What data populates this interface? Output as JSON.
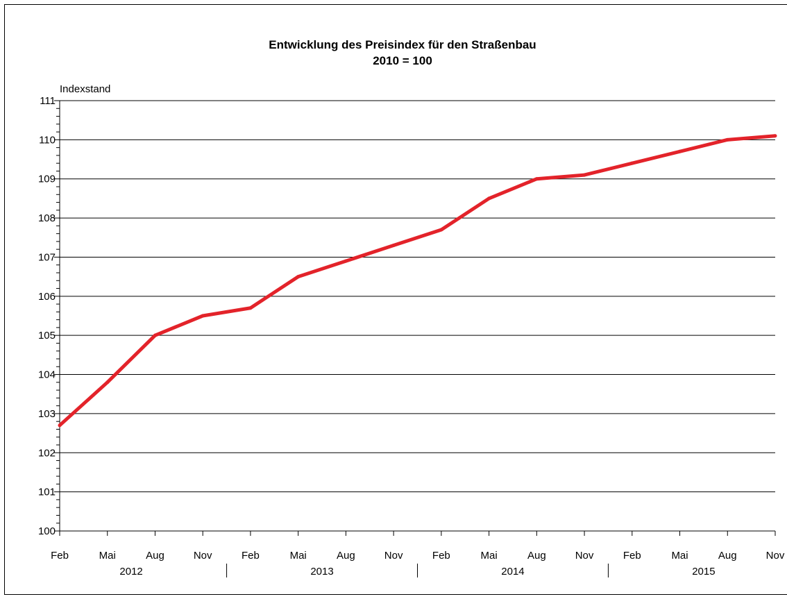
{
  "chart_data": {
    "type": "line",
    "title": "Entwicklung des Preisindex für den Straßenbau",
    "subtitle": "2010 = 100",
    "ylabel": "Indexstand",
    "xlabel": "",
    "ylim": [
      100,
      111
    ],
    "yticks": [
      100,
      101,
      102,
      103,
      104,
      105,
      106,
      107,
      108,
      109,
      110,
      111
    ],
    "grid": true,
    "line_color": "#e3232a",
    "categories": [
      "Feb",
      "Mai",
      "Aug",
      "Nov",
      "Feb",
      "Mai",
      "Aug",
      "Nov",
      "Feb",
      "Mai",
      "Aug",
      "Nov",
      "Feb",
      "Mai",
      "Aug",
      "Nov"
    ],
    "years": [
      "2012",
      "2013",
      "2014",
      "2015"
    ],
    "series": [
      {
        "values": [
          102.7,
          103.8,
          105.0,
          105.5,
          105.7,
          106.5,
          106.9,
          107.3,
          107.7,
          108.5,
          109.0,
          109.1,
          109.4,
          109.7,
          110.0,
          110.1
        ]
      }
    ]
  }
}
